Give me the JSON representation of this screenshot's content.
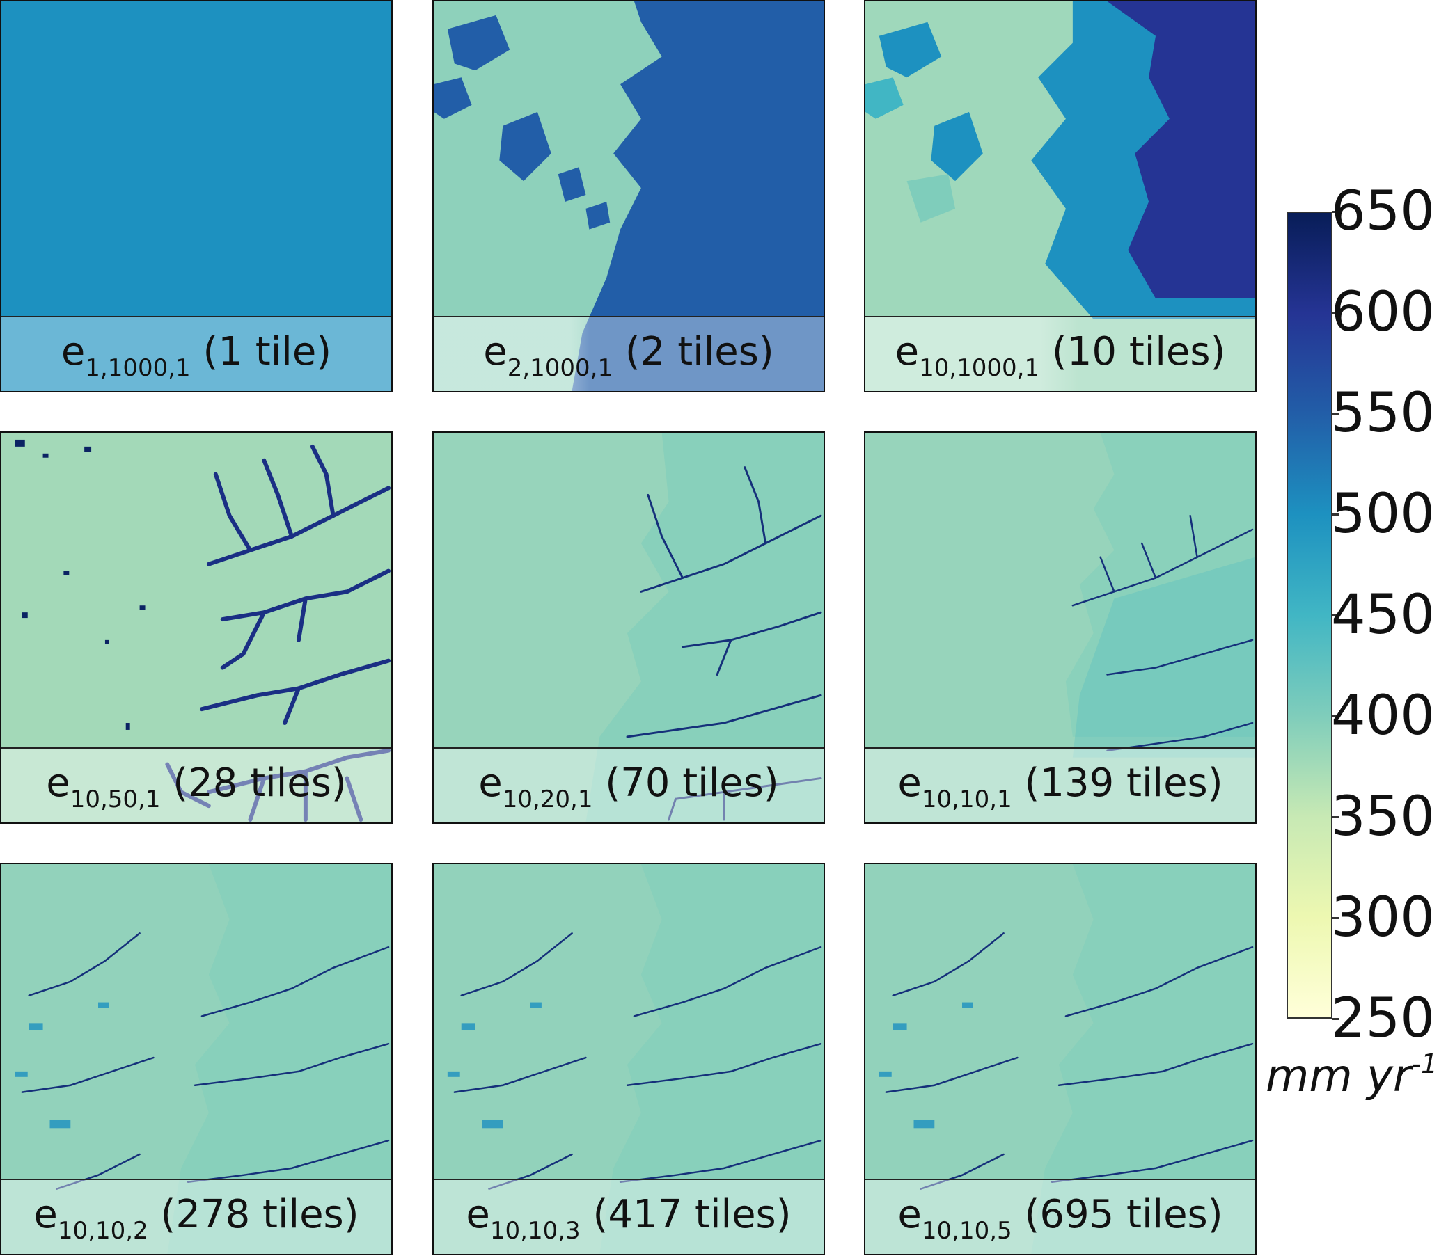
{
  "panels": [
    {
      "id": "p1",
      "base": "e",
      "sub": "1,1000,1",
      "tiles": "(1 tile)",
      "level": 0.64,
      "fill_hex": "#1d91c0"
    },
    {
      "id": "p2",
      "base": "e",
      "sub": "2,1000,1",
      "tiles": "(2 tiles)",
      "level": 0.5,
      "fill_hex": "#8ed1bb"
    },
    {
      "id": "p3",
      "base": "e",
      "sub": "10,1000,1",
      "tiles": "(10 tiles)",
      "level": 0.45,
      "fill_hex": "#9fd8bb"
    },
    {
      "id": "p4",
      "base": "e",
      "sub": "10,50,1",
      "tiles": "(28 tiles)",
      "level": 0.4,
      "fill_hex": "#a3d9b8"
    },
    {
      "id": "p5",
      "base": "e",
      "sub": "10,20,1",
      "tiles": "(70 tiles)",
      "level": 0.4,
      "fill_hex": "#97d4bb"
    },
    {
      "id": "p6",
      "base": "e",
      "sub": "10,10,1",
      "tiles": "(139 tiles)",
      "level": 0.4,
      "fill_hex": "#97d4bb"
    },
    {
      "id": "p7",
      "base": "e",
      "sub": "10,10,2",
      "tiles": "(278 tiles)",
      "level": 0.4,
      "fill_hex": "#92d2bb"
    },
    {
      "id": "p8",
      "base": "e",
      "sub": "10,10,3",
      "tiles": "(417 tiles)",
      "level": 0.4,
      "fill_hex": "#92d2bb"
    },
    {
      "id": "p9",
      "base": "e",
      "sub": "10,10,5",
      "tiles": "(695 tiles)",
      "level": 0.4,
      "fill_hex": "#92d2bb"
    }
  ],
  "colorbar": {
    "min": 250,
    "max": 650,
    "ticks": [
      "650",
      "600",
      "550",
      "500",
      "450",
      "400",
      "350",
      "300",
      "250"
    ],
    "tick_values": [
      650,
      600,
      550,
      500,
      450,
      400,
      350,
      300,
      250
    ],
    "colormap": "YlGnBu",
    "unit_base": "mm yr",
    "unit_sup": "-1"
  }
}
